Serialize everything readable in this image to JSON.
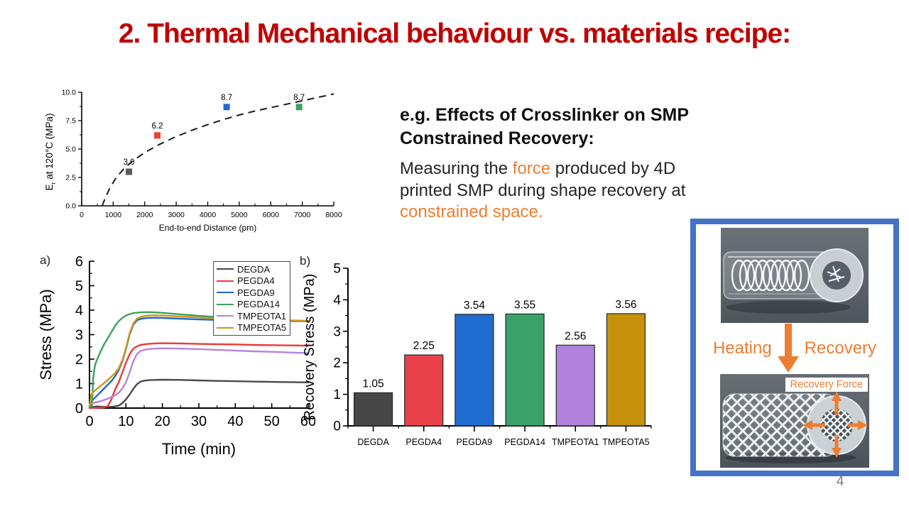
{
  "slide": {
    "title": "2. Thermal Mechanical behaviour vs. materials recipe:",
    "page_number": "4",
    "colors": {
      "title_red": "#C00000",
      "accent_orange": "#ED7D31",
      "frame_blue": "#4472C4"
    }
  },
  "right_panel": {
    "heading": "e.g. Effects of Crosslinker on SMP Constrained Recovery:",
    "body_parts": [
      {
        "text": "Measuring the ",
        "orange": false
      },
      {
        "text": "force",
        "orange": true
      },
      {
        "text": " produced by 4D printed SMP during shape recovery at ",
        "orange": false
      },
      {
        "text": "constrained space.",
        "orange": true
      }
    ]
  },
  "figure_panel": {
    "heating_label": "Heating",
    "recovery_label": "Recovery",
    "recovery_force_label": "Recovery Force"
  },
  "chart_data": [
    {
      "id": "modulus-vs-distance",
      "type": "scatter",
      "xlabel": "End-to-end Distance (pm)",
      "ylabel_parts": {
        "pre": "E",
        "sub": "r",
        "post": " at 120°C (MPa)"
      },
      "xlim": [
        0,
        8000
      ],
      "ylim": [
        0,
        10
      ],
      "xticks": [
        {
          "v": 0,
          "label": "0"
        },
        {
          "v": 1000,
          "label": "1000"
        },
        {
          "v": 2000,
          "label": "2000"
        },
        {
          "v": 3000,
          "label": "3000"
        },
        {
          "v": 4000,
          "label": "4000"
        },
        {
          "v": 5000,
          "label": "5000"
        },
        {
          "v": 6000,
          "label": "6000"
        },
        {
          "v": 7000,
          "label": "7000"
        },
        {
          "v": 8000,
          "label": "8000"
        }
      ],
      "yticks": [
        {
          "v": 0,
          "label": "0.0"
        },
        {
          "v": 2.5,
          "label": "2.5"
        },
        {
          "v": 5,
          "label": "5.0"
        },
        {
          "v": 7.5,
          "label": "7.5"
        },
        {
          "v": 10,
          "label": "10.0"
        }
      ],
      "points": [
        {
          "x": 1500,
          "y": 3.0,
          "label": "3.0",
          "color": "#595959"
        },
        {
          "x": 2400,
          "y": 6.2,
          "label": "6.2",
          "color": "#EE4035"
        },
        {
          "x": 4600,
          "y": 8.7,
          "label": "8.7",
          "color": "#2569D8"
        },
        {
          "x": 6900,
          "y": 8.7,
          "label": "8.7",
          "color": "#3CA15F"
        }
      ],
      "trend_dashed": [
        [
          650,
          0
        ],
        [
          750,
          0.7
        ],
        [
          900,
          1.6
        ],
        [
          1100,
          2.5
        ],
        [
          1350,
          3.3
        ],
        [
          1600,
          3.9
        ],
        [
          2000,
          4.7
        ],
        [
          2500,
          5.45
        ],
        [
          3000,
          6.1
        ],
        [
          3500,
          6.65
        ],
        [
          4000,
          7.15
        ],
        [
          4500,
          7.6
        ],
        [
          5000,
          8.0
        ],
        [
          5500,
          8.35
        ],
        [
          6000,
          8.65
        ],
        [
          6500,
          8.95
        ],
        [
          7000,
          9.25
        ],
        [
          7500,
          9.55
        ],
        [
          8000,
          9.85
        ]
      ]
    },
    {
      "id": "stress-vs-time",
      "type": "line",
      "panel_label": "a)",
      "xlabel": "Time (min)",
      "ylabel": "Stress (MPa)",
      "xlim": [
        0,
        60
      ],
      "ylim": [
        0,
        6
      ],
      "xticks": [
        {
          "v": 0,
          "label": "0"
        },
        {
          "v": 10,
          "label": "10"
        },
        {
          "v": 20,
          "label": "20"
        },
        {
          "v": 30,
          "label": "30"
        },
        {
          "v": 40,
          "label": "40"
        },
        {
          "v": 50,
          "label": "50"
        },
        {
          "v": 60,
          "label": "60"
        }
      ],
      "yticks": [
        {
          "v": 0,
          "label": "0"
        },
        {
          "v": 1,
          "label": "1"
        },
        {
          "v": 2,
          "label": "2"
        },
        {
          "v": 3,
          "label": "3"
        },
        {
          "v": 4,
          "label": "4"
        },
        {
          "v": 5,
          "label": "5"
        },
        {
          "v": 6,
          "label": "6"
        }
      ],
      "legend_position": "top-right",
      "series": [
        {
          "name": "DEGDA",
          "color": "#4A4A4A",
          "points": [
            [
              0,
              0.02
            ],
            [
              2,
              0.07
            ],
            [
              4,
              0.05
            ],
            [
              6,
              0.05
            ],
            [
              8,
              0.1
            ],
            [
              9,
              0.2
            ],
            [
              10,
              0.35
            ],
            [
              11,
              0.55
            ],
            [
              12,
              0.78
            ],
            [
              13,
              0.97
            ],
            [
              14,
              1.08
            ],
            [
              15,
              1.12
            ],
            [
              16,
              1.14
            ],
            [
              18,
              1.15
            ],
            [
              20,
              1.16
            ],
            [
              25,
              1.15
            ],
            [
              30,
              1.13
            ],
            [
              35,
              1.11
            ],
            [
              40,
              1.1
            ],
            [
              45,
              1.08
            ],
            [
              50,
              1.07
            ],
            [
              55,
              1.06
            ],
            [
              60,
              1.05
            ]
          ]
        },
        {
          "name": "PEGDA4",
          "color": "#EA3B34",
          "points": [
            [
              0,
              0
            ],
            [
              4,
              0.02
            ],
            [
              5,
              0.08
            ],
            [
              6,
              0.35
            ],
            [
              7,
              0.75
            ],
            [
              8,
              1.05
            ],
            [
              9,
              1.45
            ],
            [
              10,
              1.85
            ],
            [
              11,
              2.2
            ],
            [
              12,
              2.42
            ],
            [
              13,
              2.52
            ],
            [
              14,
              2.58
            ],
            [
              16,
              2.62
            ],
            [
              18,
              2.64
            ],
            [
              20,
              2.65
            ],
            [
              25,
              2.64
            ],
            [
              30,
              2.62
            ],
            [
              35,
              2.61
            ],
            [
              40,
              2.6
            ],
            [
              45,
              2.58
            ],
            [
              50,
              2.57
            ],
            [
              55,
              2.56
            ],
            [
              60,
              2.55
            ]
          ]
        },
        {
          "name": "PEGDA9",
          "color": "#2067D8",
          "points": [
            [
              0,
              0.05
            ],
            [
              0.5,
              0.25
            ],
            [
              1,
              0.35
            ],
            [
              2,
              0.5
            ],
            [
              3,
              0.65
            ],
            [
              4,
              0.8
            ],
            [
              5,
              0.95
            ],
            [
              6,
              1.1
            ],
            [
              7,
              1.3
            ],
            [
              8,
              1.55
            ],
            [
              9,
              1.9
            ],
            [
              10,
              2.4
            ],
            [
              11,
              3.0
            ],
            [
              12,
              3.4
            ],
            [
              13,
              3.58
            ],
            [
              14,
              3.64
            ],
            [
              15,
              3.67
            ],
            [
              16,
              3.68
            ],
            [
              18,
              3.69
            ],
            [
              20,
              3.68
            ],
            [
              25,
              3.65
            ],
            [
              30,
              3.62
            ],
            [
              35,
              3.6
            ],
            [
              40,
              3.58
            ],
            [
              45,
              3.57
            ],
            [
              50,
              3.56
            ],
            [
              55,
              3.55
            ],
            [
              60,
              3.55
            ]
          ]
        },
        {
          "name": "PEGDA14",
          "color": "#3CA15F",
          "points": [
            [
              0,
              0.05
            ],
            [
              0.7,
              0.1
            ],
            [
              1,
              1.2
            ],
            [
              1.5,
              1.75
            ],
            [
              2,
              1.95
            ],
            [
              3,
              2.3
            ],
            [
              4,
              2.6
            ],
            [
              5,
              2.85
            ],
            [
              6,
              3.1
            ],
            [
              7,
              3.35
            ],
            [
              8,
              3.55
            ],
            [
              9,
              3.68
            ],
            [
              10,
              3.78
            ],
            [
              11,
              3.84
            ],
            [
              12,
              3.88
            ],
            [
              14,
              3.91
            ],
            [
              16,
              3.92
            ],
            [
              18,
              3.91
            ],
            [
              20,
              3.89
            ],
            [
              25,
              3.83
            ],
            [
              30,
              3.77
            ],
            [
              35,
              3.72
            ],
            [
              40,
              3.68
            ],
            [
              45,
              3.64
            ],
            [
              50,
              3.61
            ],
            [
              55,
              3.58
            ],
            [
              60,
              3.56
            ]
          ]
        },
        {
          "name": "TMPEOTA1",
          "color": "#B583DE",
          "points": [
            [
              0,
              0.15
            ],
            [
              1,
              0.2
            ],
            [
              2,
              0.24
            ],
            [
              3,
              0.28
            ],
            [
              4,
              0.33
            ],
            [
              5,
              0.38
            ],
            [
              6,
              0.45
            ],
            [
              7,
              0.52
            ],
            [
              8,
              0.62
            ],
            [
              9,
              0.8
            ],
            [
              10,
              1.05
            ],
            [
              11,
              1.45
            ],
            [
              12,
              1.9
            ],
            [
              13,
              2.2
            ],
            [
              14,
              2.33
            ],
            [
              15,
              2.38
            ],
            [
              16,
              2.41
            ],
            [
              18,
              2.43
            ],
            [
              20,
              2.44
            ],
            [
              25,
              2.43
            ],
            [
              30,
              2.41
            ],
            [
              35,
              2.38
            ],
            [
              40,
              2.35
            ],
            [
              45,
              2.32
            ],
            [
              50,
              2.3
            ],
            [
              55,
              2.27
            ],
            [
              60,
              2.25
            ]
          ]
        },
        {
          "name": "TMPEOTA5",
          "color": "#CF9713",
          "points": [
            [
              0,
              0.1
            ],
            [
              0.5,
              0.55
            ],
            [
              1,
              0.65
            ],
            [
              2,
              0.78
            ],
            [
              3,
              0.9
            ],
            [
              4,
              1.02
            ],
            [
              5,
              1.15
            ],
            [
              6,
              1.28
            ],
            [
              7,
              1.42
            ],
            [
              8,
              1.62
            ],
            [
              9,
              1.95
            ],
            [
              10,
              2.45
            ],
            [
              11,
              3.05
            ],
            [
              12,
              3.45
            ],
            [
              13,
              3.65
            ],
            [
              14,
              3.72
            ],
            [
              15,
              3.76
            ],
            [
              16,
              3.78
            ],
            [
              18,
              3.79
            ],
            [
              20,
              3.78
            ],
            [
              25,
              3.74
            ],
            [
              30,
              3.7
            ],
            [
              35,
              3.66
            ],
            [
              40,
              3.63
            ],
            [
              45,
              3.6
            ],
            [
              50,
              3.58
            ],
            [
              55,
              3.57
            ],
            [
              60,
              3.56
            ]
          ]
        }
      ]
    },
    {
      "id": "recovery-stress",
      "type": "bar",
      "panel_label": "b)",
      "ylabel": "Recovery Stress (MPa)",
      "categories": [
        "DEGDA",
        "PEGDA4",
        "PEGDA9",
        "PEGDA14",
        "TMPEOTA1",
        "TMPEOTA5"
      ],
      "values": [
        1.05,
        2.25,
        3.54,
        3.55,
        2.56,
        3.56
      ],
      "bar_labels": [
        "1.05",
        "2.25",
        "3.54",
        "3.55",
        "2.56",
        "3.56"
      ],
      "colors": [
        "#474747",
        "#E8414A",
        "#1F6BD0",
        "#3AA269",
        "#B183DD",
        "#C6920B"
      ],
      "ylim": [
        0,
        5
      ],
      "yticks": [
        {
          "v": 0,
          "label": "0"
        },
        {
          "v": 1,
          "label": "1"
        },
        {
          "v": 2,
          "label": "2"
        },
        {
          "v": 3,
          "label": "3"
        },
        {
          "v": 4,
          "label": "4"
        },
        {
          "v": 5,
          "label": "5"
        }
      ]
    }
  ]
}
